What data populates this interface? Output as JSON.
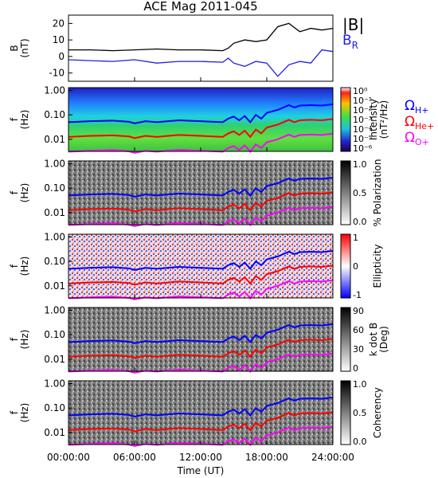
{
  "title": "ACE Mag 2011-045",
  "time_axis": {
    "label": "Time (UT)",
    "ticks": [
      "00:00:00",
      "06:00:00",
      "12:00:00",
      "18:00:00",
      "24:00:00"
    ],
    "hours": [
      0,
      6,
      12,
      18,
      24
    ]
  },
  "legend": {
    "b_total": "|B|",
    "b_r": "B",
    "b_r_sub": "R",
    "omega": "Ω",
    "h_plus": "H+",
    "he_plus": "He+",
    "o_plus": "O+"
  },
  "colors": {
    "b_total": "#000000",
    "b_r": "#1e1ee6",
    "h_plus": "#0000ff",
    "he_plus": "#ff0000",
    "o_plus": "#ff00ff"
  },
  "freq_ticks": [
    "1.00",
    "0.10",
    "0.01"
  ],
  "chart_data": [
    {
      "type": "line",
      "panel": "B",
      "ylabel": "B",
      "yunit": "(nT)",
      "ylim": [
        -15,
        25
      ],
      "yticks": [
        "20",
        "10",
        "0",
        "-10"
      ],
      "x_hours": [
        0,
        2,
        4,
        6,
        8,
        10,
        12,
        14,
        14.5,
        15,
        16,
        17,
        18,
        19,
        20,
        21,
        22,
        23,
        24
      ],
      "series": [
        {
          "key": "b_total",
          "values": [
            4,
            4,
            3.5,
            4,
            4.5,
            4,
            4,
            3.5,
            5,
            8,
            10,
            9,
            10,
            18,
            20,
            15,
            17,
            16,
            17
          ]
        },
        {
          "key": "b_r",
          "values": [
            -2,
            -2.5,
            -3,
            -2,
            -4,
            -3,
            -3,
            -3.5,
            -1,
            -4,
            -6,
            -3,
            -4,
            -12,
            -5,
            -3,
            -4,
            4,
            3
          ]
        }
      ]
    },
    {
      "type": "heatmap",
      "panel": "spectrum",
      "ylabel": "f",
      "yunit": "(Hz)",
      "colorbar_label": "Intensity",
      "colorbar_unit": "(nT²/Hz)",
      "colorbar_ticks": [
        "10⁰",
        "10⁻¹",
        "10⁻²",
        "10⁻³",
        "10⁻⁴",
        "10⁻⁵",
        "10⁻⁶"
      ]
    },
    {
      "type": "heatmap",
      "panel": "polarization",
      "ylabel": "f",
      "yunit": "(Hz)",
      "colorbar_label": "% Polarization",
      "colorbar_ticks": [
        "1.0",
        "0.5",
        "0.0"
      ]
    },
    {
      "type": "heatmap",
      "panel": "ellipticity",
      "ylabel": "f",
      "yunit": "(Hz)",
      "colorbar_label": "Ellipticity",
      "colorbar_ticks": [
        "1",
        "0",
        "-1"
      ]
    },
    {
      "type": "heatmap",
      "panel": "kdotb",
      "ylabel": "f",
      "yunit": "(Hz)",
      "colorbar_label": "k dot B",
      "colorbar_unit": "(Deg)",
      "colorbar_ticks": [
        "90",
        "60",
        "30",
        "0"
      ]
    },
    {
      "type": "heatmap",
      "panel": "coherency",
      "ylabel": "f",
      "yunit": "(Hz)",
      "colorbar_label": "Coherency",
      "colorbar_ticks": [
        "1.0",
        "0.5",
        "0.0"
      ]
    }
  ],
  "gyrofrequency_lines": {
    "x_hours": [
      0,
      2,
      4,
      5.5,
      6,
      7,
      8,
      10,
      12,
      14,
      14.5,
      15,
      15.5,
      16,
      16.5,
      17,
      17.5,
      18,
      19,
      20,
      20.5,
      21,
      22,
      23,
      24
    ],
    "h_plus_hz": [
      0.05,
      0.055,
      0.058,
      0.052,
      0.045,
      0.055,
      0.05,
      0.06,
      0.055,
      0.05,
      0.07,
      0.085,
      0.06,
      0.09,
      0.05,
      0.1,
      0.07,
      0.12,
      0.16,
      0.25,
      0.2,
      0.24,
      0.25,
      0.24,
      0.27
    ],
    "he_plus_hz": [
      0.0125,
      0.0138,
      0.0145,
      0.013,
      0.0112,
      0.0138,
      0.0125,
      0.015,
      0.0138,
      0.0125,
      0.0175,
      0.0212,
      0.015,
      0.0225,
      0.0125,
      0.025,
      0.0175,
      0.03,
      0.04,
      0.0625,
      0.05,
      0.06,
      0.0625,
      0.06,
      0.0675
    ],
    "o_plus_hz": [
      0.0031,
      0.0034,
      0.0036,
      0.0032,
      0.0028,
      0.0034,
      0.0031,
      0.0037,
      0.0034,
      0.0031,
      0.0044,
      0.0053,
      0.0037,
      0.0056,
      0.0031,
      0.0062,
      0.0044,
      0.0075,
      0.01,
      0.0156,
      0.0125,
      0.015,
      0.0156,
      0.015,
      0.0169
    ]
  }
}
